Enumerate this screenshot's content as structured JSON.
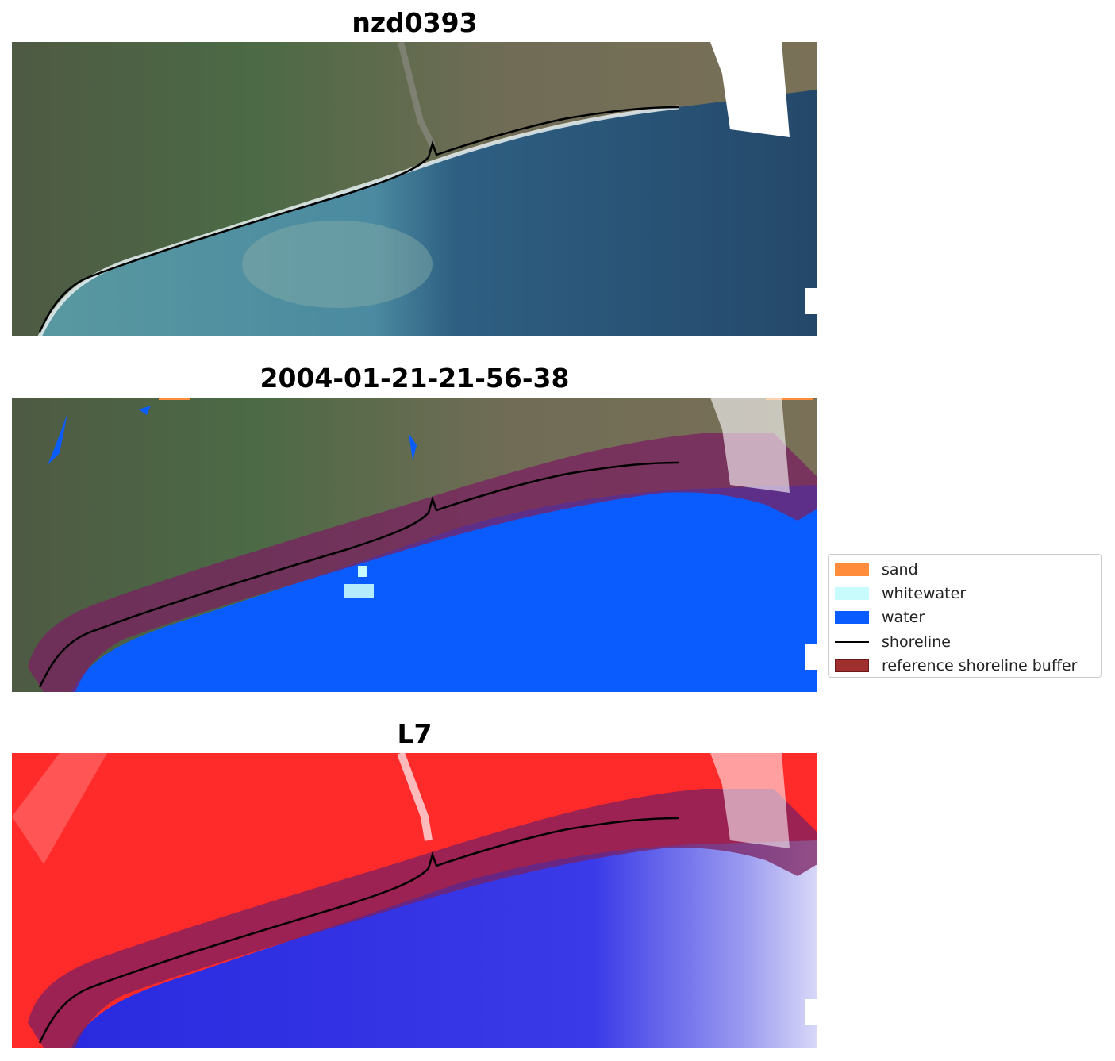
{
  "panels": [
    {
      "title": "nzd0393"
    },
    {
      "title": "2004-01-21-21-56-38"
    },
    {
      "title": "L7"
    }
  ],
  "legend": {
    "items": [
      {
        "label": "sand",
        "color": "#ff8c3a",
        "kind": "patch"
      },
      {
        "label": "whitewater",
        "color": "#c8fcfc",
        "kind": "patch"
      },
      {
        "label": "water",
        "color": "#0a5cff",
        "kind": "patch"
      },
      {
        "label": "shoreline",
        "color": "#000000",
        "kind": "line"
      },
      {
        "label": "reference shoreline buffer",
        "color": "#a0302e",
        "kind": "patch"
      }
    ]
  },
  "colors": {
    "land": "#5a6a4a",
    "sea_rgb": "#2f5a7a",
    "water_class": "#0a5cff",
    "ndwi_land": "#ff2020",
    "ndwi_water": "#3a3ae8",
    "buffer": "#8a2060",
    "shoreline": "#000000"
  }
}
